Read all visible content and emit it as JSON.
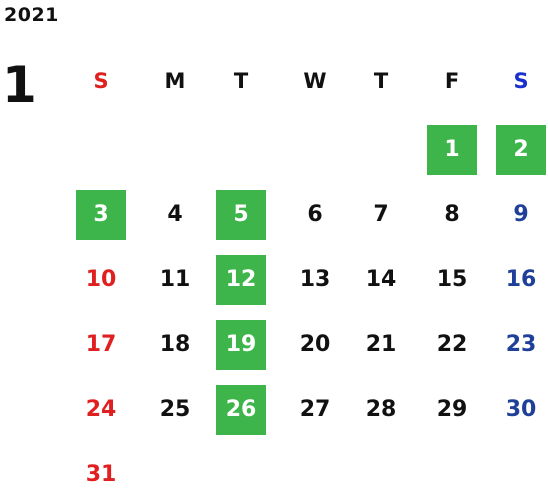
{
  "year": "2021",
  "month": "1",
  "colors": {
    "sunday": "#e02020",
    "saturday": "#1f3f99",
    "weekday": "#111111",
    "holiday_bg": "#3db54a",
    "holiday_text": "#ffffff"
  },
  "weekdays": [
    "S",
    "M",
    "T",
    "W",
    "T",
    "F",
    "S"
  ],
  "weekday_header_colors": [
    "#e02020",
    "#111111",
    "#111111",
    "#111111",
    "#111111",
    "#111111",
    "#1a2fd0"
  ],
  "weeks": [
    [
      "",
      "",
      "",
      "",
      "",
      "1",
      "2"
    ],
    [
      "3",
      "4",
      "5",
      "6",
      "7",
      "8",
      "9"
    ],
    [
      "10",
      "11",
      "12",
      "13",
      "14",
      "15",
      "16"
    ],
    [
      "17",
      "18",
      "19",
      "20",
      "21",
      "22",
      "23"
    ],
    [
      "24",
      "25",
      "26",
      "27",
      "28",
      "29",
      "30"
    ],
    [
      "31",
      "",
      "",
      "",
      "",
      "",
      ""
    ]
  ],
  "highlighted_days": [
    "1",
    "2",
    "3",
    "5",
    "12",
    "19",
    "26"
  ]
}
